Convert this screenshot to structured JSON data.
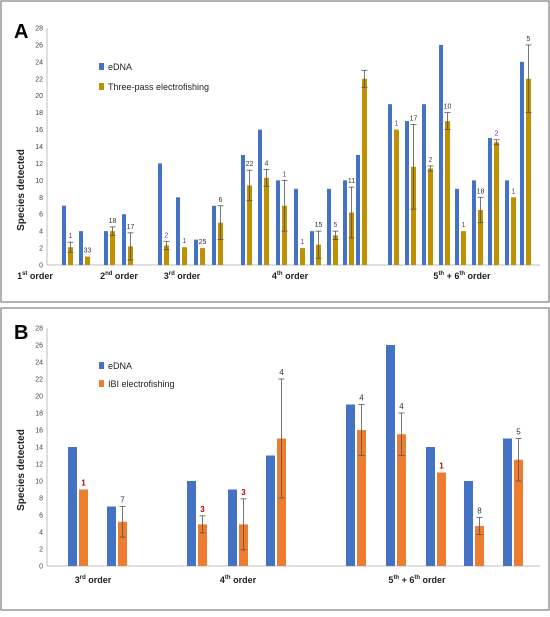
{
  "colors": {
    "edna": "#4472C4",
    "fish": "#BF9000",
    "fish_b": "#ED7D31",
    "err": "#555555",
    "label_dark": "#333333",
    "label_purple": "#7030A0",
    "label_red": "#C00000",
    "axis": "#bfbfbf",
    "border": "#7f7f7f"
  },
  "panels": [
    {
      "letter": "A",
      "ylabel": "Species detected",
      "legend": [
        "eDNA",
        "Three-pass electrofishing"
      ],
      "groups": [
        {
          "label": "1st order",
          "base": "1",
          "sup": "st",
          "rest": " order"
        },
        {
          "label": "2nd order",
          "base": "2",
          "sup": "nd",
          "rest": " order"
        },
        {
          "label": "3rd order",
          "base": "3",
          "sup": "rd",
          "rest": " order"
        },
        {
          "label": "4th order",
          "base": "4",
          "sup": "th",
          "rest": " order"
        },
        {
          "label": "5th + 6th order",
          "base": "5",
          "sup": "th",
          "rest": " + 6",
          "sup2": "th",
          "rest2": " order"
        }
      ]
    },
    {
      "letter": "B",
      "ylabel": "Species detected",
      "legend": [
        "eDNA",
        "IBI electrofishing"
      ],
      "groups": [
        {
          "label": "3rd order",
          "base": "3",
          "sup": "rd",
          "rest": " order"
        },
        {
          "label": "4th order",
          "base": "4",
          "sup": "th",
          "rest": " order"
        },
        {
          "label": "5th + 6th order",
          "base": "5",
          "sup": "th",
          "rest": " + 6",
          "sup2": "th",
          "rest2": " order"
        }
      ]
    }
  ],
  "chart_data": [
    {
      "type": "bar",
      "title": "A",
      "ylabel": "Species detected",
      "ylim": [
        0,
        28
      ],
      "yticks": [
        0,
        2,
        4,
        6,
        8,
        10,
        12,
        14,
        16,
        18,
        20,
        22,
        24,
        26,
        28
      ],
      "grid": false,
      "legend_position": "top-left",
      "series_names": [
        "eDNA",
        "Three-pass electrofishing"
      ],
      "sites": [
        {
          "group": "1st order",
          "edna": 7,
          "fish": 2.1,
          "err": 0.6,
          "label": "1",
          "label_color": "label_purple"
        },
        {
          "group": "1st order",
          "edna": 4,
          "fish": 1.0,
          "err": 0.0,
          "label": "33",
          "label_color": "label_dark"
        },
        {
          "group": "2nd order",
          "edna": 4,
          "fish": 4.0,
          "err": 0.5,
          "label": "18",
          "label_color": "label_dark"
        },
        {
          "group": "2nd order",
          "edna": 6,
          "fish": 2.2,
          "err": 1.6,
          "label": "17",
          "label_color": "label_dark"
        },
        {
          "group": "3rd order",
          "edna": 12,
          "fish": 2.3,
          "err": 0.5,
          "label": "2",
          "label_color": "label_purple"
        },
        {
          "group": "3rd order",
          "edna": 8,
          "fish": 2.1,
          "err": 0.0,
          "label": "1",
          "label_color": "label_purple"
        },
        {
          "group": "3rd order",
          "edna": 3,
          "fish": 2.0,
          "err": 0.0,
          "label": "25",
          "label_color": "label_dark"
        },
        {
          "group": "3rd order",
          "edna": 7,
          "fish": 5.0,
          "err": 2.0,
          "label": "6",
          "label_color": "label_dark"
        },
        {
          "group": "4th order",
          "edna": 13,
          "fish": 9.4,
          "err": 1.8,
          "label": "22",
          "label_color": "label_dark"
        },
        {
          "group": "4th order",
          "edna": 16,
          "fish": 10.3,
          "err": 1.0,
          "label": "4",
          "label_color": "label_dark"
        },
        {
          "group": "4th order",
          "edna": 10,
          "fish": 7.0,
          "err": 3.0,
          "label": "1",
          "label_color": "label_purple"
        },
        {
          "group": "4th order",
          "edna": 9,
          "fish": 2.0,
          "err": 0.0,
          "label": "1",
          "label_color": "label_purple"
        },
        {
          "group": "4th order",
          "edna": 4,
          "fish": 2.4,
          "err": 1.6,
          "label": "15",
          "label_color": "label_dark"
        },
        {
          "group": "4th order",
          "edna": 9,
          "fish": 3.5,
          "err": 0.5,
          "label": "5",
          "label_color": "label_purple"
        },
        {
          "group": "4th order",
          "edna": 10,
          "fish": 6.2,
          "err": 3.0,
          "label": "11",
          "label_color": "label_dark"
        },
        {
          "group": "4th order",
          "edna": 13,
          "fish": 22.0,
          "err": 1.0,
          "label": "",
          "label_color": "label_dark"
        },
        {
          "group": "5th + 6th order",
          "edna": 19,
          "fish": 16.0,
          "err": 0.0,
          "label": "1",
          "label_color": "label_purple"
        },
        {
          "group": "5th + 6th order",
          "edna": 17,
          "fish": 11.6,
          "err": 5.0,
          "label": "17",
          "label_color": "label_dark"
        },
        {
          "group": "5th + 6th order",
          "edna": 19,
          "fish": 11.4,
          "err": 0.3,
          "label": "2",
          "label_color": "label_purple"
        },
        {
          "group": "5th + 6th order",
          "edna": 26,
          "fish": 17.0,
          "err": 1.0,
          "label": "10",
          "label_color": "label_dark"
        },
        {
          "group": "5th + 6th order",
          "edna": 9,
          "fish": 4.0,
          "err": 0.0,
          "label": "1",
          "label_color": "label_purple"
        },
        {
          "group": "5th + 6th order",
          "edna": 10,
          "fish": 6.5,
          "err": 1.5,
          "label": "18",
          "label_color": "label_dark"
        },
        {
          "group": "5th + 6th order",
          "edna": 15,
          "fish": 14.5,
          "err": 0.3,
          "label": "2",
          "label_color": "label_purple"
        },
        {
          "group": "5th + 6th order",
          "edna": 10,
          "fish": 8.0,
          "err": 0.0,
          "label": "1",
          "label_color": "label_purple"
        },
        {
          "group": "5th + 6th order",
          "edna": 24,
          "fish": 22.0,
          "err": 4.0,
          "label": "5",
          "label_color": "label_dark"
        }
      ]
    },
    {
      "type": "bar",
      "title": "B",
      "ylabel": "Species detected",
      "ylim": [
        0,
        28
      ],
      "yticks": [
        0,
        2,
        4,
        6,
        8,
        10,
        12,
        14,
        16,
        18,
        20,
        22,
        24,
        26,
        28
      ],
      "grid": false,
      "legend_position": "top-left",
      "series_names": [
        "eDNA",
        "IBI electrofishing"
      ],
      "sites": [
        {
          "group": "3rd order",
          "edna": 14,
          "fish": 9.0,
          "err": 0.0,
          "label": "1",
          "label_color": "label_red"
        },
        {
          "group": "3rd order",
          "edna": 7,
          "fish": 5.2,
          "err": 1.8,
          "label": "7",
          "label_color": "label_dark"
        },
        {
          "group": "4th order",
          "edna": 10,
          "fish": 4.9,
          "err": 1.0,
          "label": "3",
          "label_color": "label_red"
        },
        {
          "group": "4th order",
          "edna": 9,
          "fish": 4.9,
          "err": 3.0,
          "label": "3",
          "label_color": "label_red"
        },
        {
          "group": "4th order",
          "edna": 13,
          "fish": 15.0,
          "err": 7.0,
          "label": "4",
          "label_color": "label_dark"
        },
        {
          "group": "5th + 6th order",
          "edna": 19,
          "fish": 16.0,
          "err": 3.0,
          "label": "4",
          "label_color": "label_dark"
        },
        {
          "group": "5th + 6th order",
          "edna": 26,
          "fish": 15.5,
          "err": 2.5,
          "label": "4",
          "label_color": "label_dark"
        },
        {
          "group": "5th + 6th order",
          "edna": 14,
          "fish": 11.0,
          "err": 0.0,
          "label": "1",
          "label_color": "label_red"
        },
        {
          "group": "5th + 6th order",
          "edna": 10,
          "fish": 4.7,
          "err": 1.0,
          "label": "8",
          "label_color": "label_dark"
        },
        {
          "group": "5th + 6th order",
          "edna": 15,
          "fish": 12.5,
          "err": 2.5,
          "label": "5",
          "label_color": "label_dark"
        }
      ]
    }
  ]
}
